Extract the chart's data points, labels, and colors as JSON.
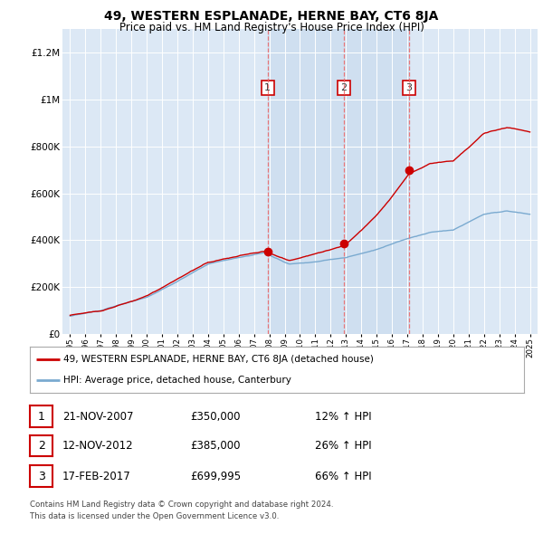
{
  "title": "49, WESTERN ESPLANADE, HERNE BAY, CT6 8JA",
  "subtitle": "Price paid vs. HM Land Registry's House Price Index (HPI)",
  "ylim": [
    0,
    1300000
  ],
  "yticks": [
    0,
    200000,
    400000,
    600000,
    800000,
    1000000,
    1200000
  ],
  "ytick_labels": [
    "£0",
    "£200K",
    "£400K",
    "£600K",
    "£800K",
    "£1M",
    "£1.2M"
  ],
  "background_color": "#ffffff",
  "plot_bg_color": "#dce8f5",
  "shade_color": "#ccddf0",
  "grid_color": "#ffffff",
  "sale_color": "#cc0000",
  "hpi_color": "#7aaad0",
  "vline_color": "#ee6666",
  "sale_points": [
    {
      "year": 2007.89,
      "price": 350000,
      "label": "1"
    },
    {
      "year": 2012.87,
      "price": 385000,
      "label": "2"
    },
    {
      "year": 2017.12,
      "price": 699995,
      "label": "3"
    }
  ],
  "legend_entries": [
    "49, WESTERN ESPLANADE, HERNE BAY, CT6 8JA (detached house)",
    "HPI: Average price, detached house, Canterbury"
  ],
  "table_rows": [
    [
      "1",
      "21-NOV-2007",
      "£350,000",
      "12% ↑ HPI"
    ],
    [
      "2",
      "12-NOV-2012",
      "£385,000",
      "26% ↑ HPI"
    ],
    [
      "3",
      "17-FEB-2017",
      "£699,995",
      "66% ↑ HPI"
    ]
  ],
  "footnote1": "Contains HM Land Registry data © Crown copyright and database right 2024.",
  "footnote2": "This data is licensed under the Open Government Licence v3.0."
}
